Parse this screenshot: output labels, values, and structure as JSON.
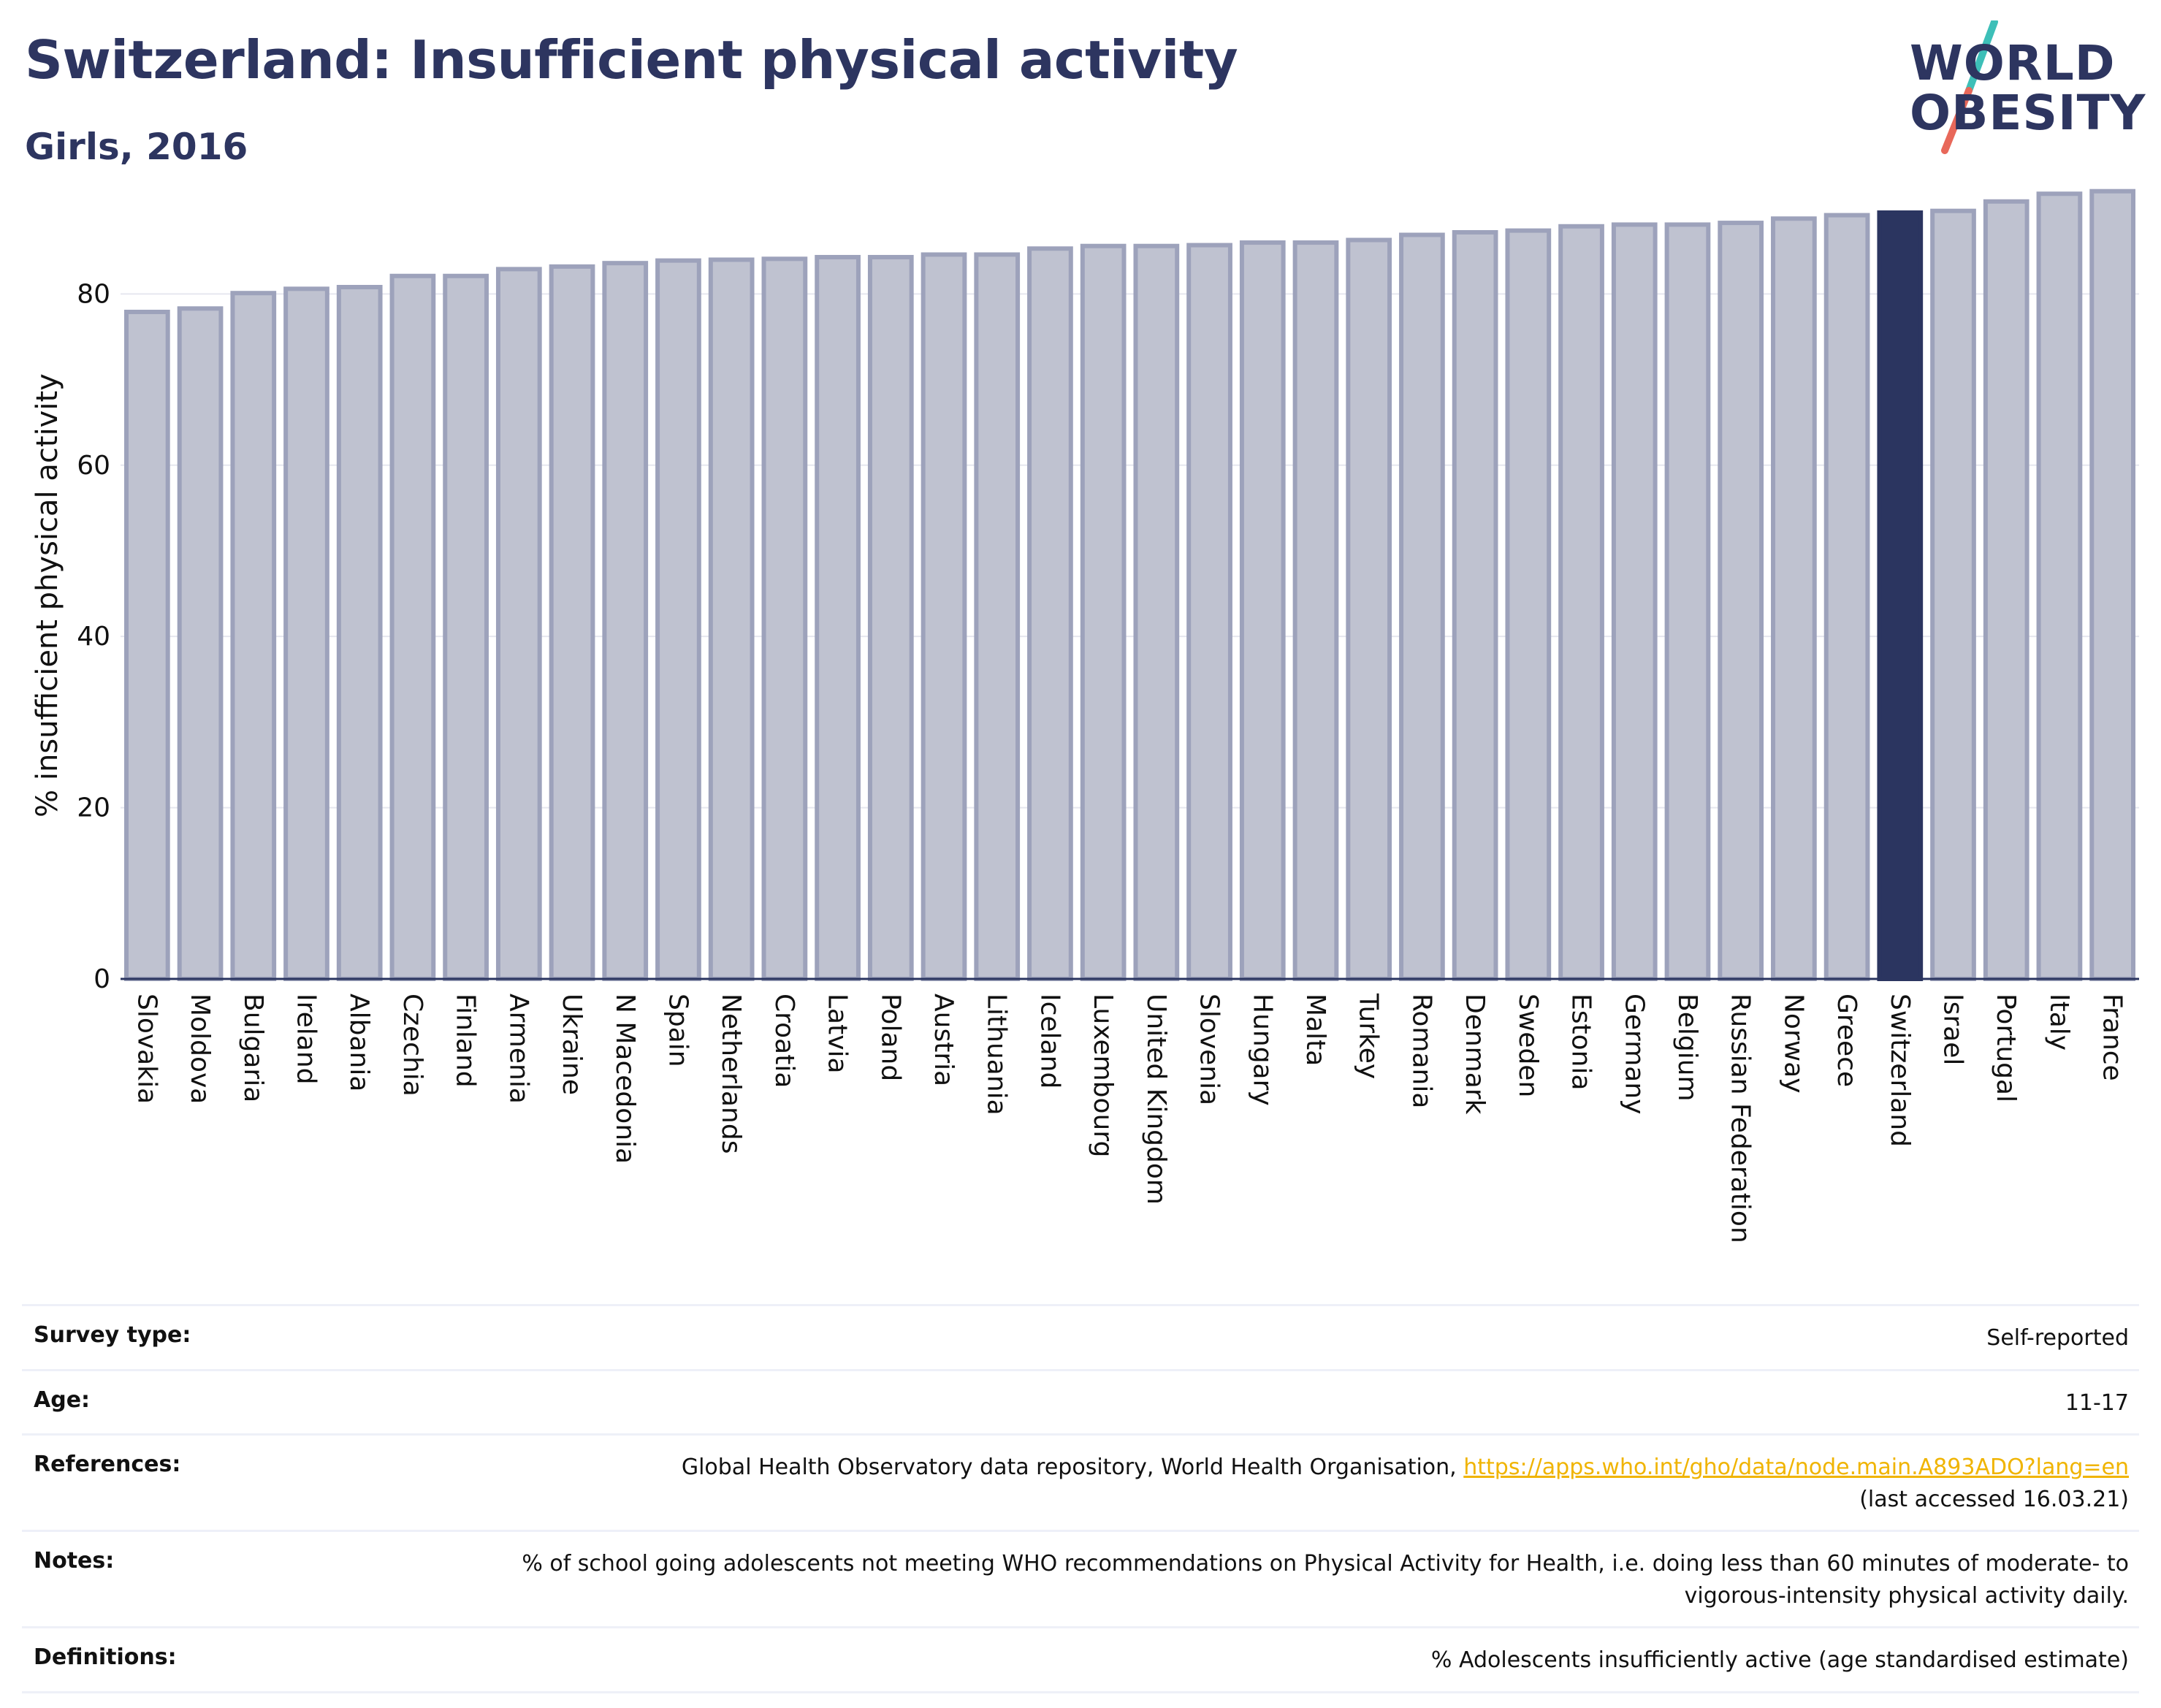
{
  "header": {
    "title": "Switzerland: Insufficient physical activity",
    "subtitle": "Girls, 2016"
  },
  "logo": {
    "line1": "WORLD",
    "line2": "OBESITY",
    "accent_colors": [
      "#3dbfb8",
      "#e8685a"
    ]
  },
  "chart_data": {
    "type": "bar",
    "ylabel": "% insufficient physical activity",
    "xlabel": "",
    "ylim": [
      0,
      93
    ],
    "yticks": [
      0,
      20,
      40,
      60,
      80
    ],
    "grid": true,
    "highlight": "Switzerland",
    "colors": {
      "bar_fill": "#bfc2d0",
      "bar_border": "#9da2bb",
      "highlight_fill": "#2b3560",
      "gridline": "#e6e7ef",
      "axis": "#2b3560"
    },
    "categories": [
      "Slovakia",
      "Moldova",
      "Bulgaria",
      "Ireland",
      "Albania",
      "Czechia",
      "Finland",
      "Armenia",
      "Ukraine",
      "N Macedonia",
      "Spain",
      "Netherlands",
      "Croatia",
      "Latvia",
      "Poland",
      "Austria",
      "Lithuania",
      "Iceland",
      "Luxembourg",
      "United Kingdom",
      "Slovenia",
      "Hungary",
      "Malta",
      "Turkey",
      "Romania",
      "Denmark",
      "Sweden",
      "Estonia",
      "Germany",
      "Belgium",
      "Russian Federation",
      "Norway",
      "Greece",
      "Switzerland",
      "Israel",
      "Portugal",
      "Italy",
      "France"
    ],
    "values": [
      77.9,
      78.3,
      80.1,
      80.6,
      80.8,
      82.1,
      82.1,
      82.9,
      83.2,
      83.6,
      83.9,
      84.0,
      84.1,
      84.3,
      84.3,
      84.6,
      84.6,
      85.3,
      85.6,
      85.6,
      85.7,
      86.0,
      86.0,
      86.3,
      86.9,
      87.2,
      87.4,
      87.9,
      88.1,
      88.1,
      88.3,
      88.8,
      89.2,
      89.5,
      89.7,
      90.8,
      91.7,
      92.0
    ]
  },
  "info": {
    "rows": [
      {
        "label": "Survey type:",
        "value": "Self-reported"
      },
      {
        "label": "Age:",
        "value": "11-17"
      },
      {
        "label": "References:",
        "value": "Global Health Observatory data repository, World Health Organisation,",
        "link": "https://apps.who.int/gho/data/node.main.A893ADO?lang=en",
        "value2": "(last accessed 16.03.21)"
      },
      {
        "label": "Notes:",
        "value": "% of school going adolescents not meeting WHO recommendations on Physical Activity for Health, i.e. doing less than 60 minutes of moderate- to vigorous-intensity physical activity daily."
      },
      {
        "label": "Definitions:",
        "value": "% Adolescents insufficiently active (age standardised estimate)"
      }
    ]
  }
}
